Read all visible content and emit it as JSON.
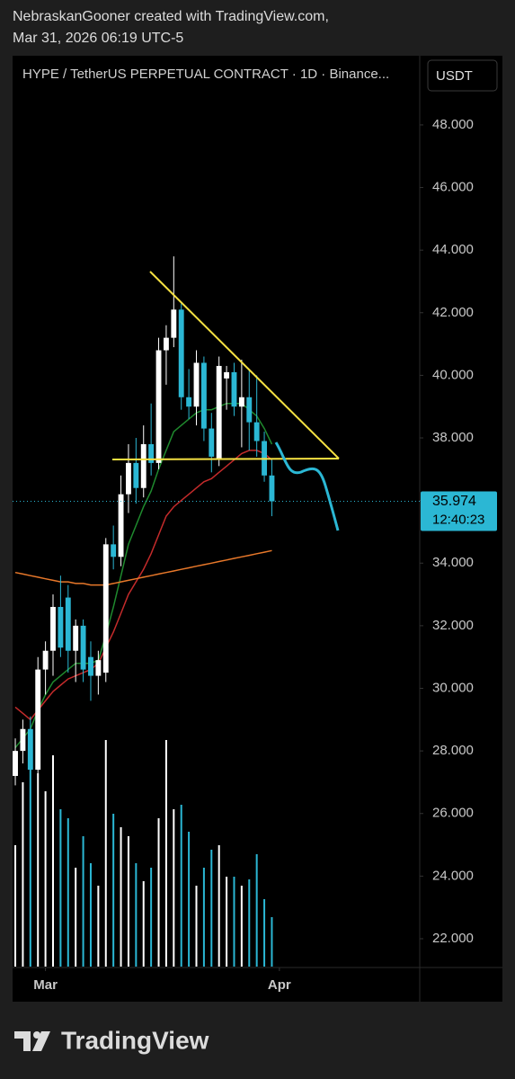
{
  "header": {
    "author": "NebraskanGooner created with TradingView.com,",
    "timestamp": "Mar 31, 2026 06:19 UTC-5"
  },
  "footer": {
    "brand": "TradingView"
  },
  "chart_data": {
    "type": "candlestick",
    "title": "HYPE / TetherUS PERPETUAL CONTRACT · 1D · Binance...",
    "currency": "USDT",
    "xlim": [
      -0.36,
      53.6
    ],
    "xticks": [
      {
        "value": 4,
        "label": "Mar"
      },
      {
        "value": 35,
        "label": "Apr"
      }
    ],
    "ylim": [
      21.08,
      50.21
    ],
    "yticks": [
      {
        "value": 22,
        "label": "22.000"
      },
      {
        "value": 24,
        "label": "24.000"
      },
      {
        "value": 26,
        "label": "26.000"
      },
      {
        "value": 28,
        "label": "28.000"
      },
      {
        "value": 30,
        "label": "30.000"
      },
      {
        "value": 32,
        "label": "32.000"
      },
      {
        "value": 34,
        "label": "34.000"
      },
      {
        "value": 36,
        "label": "36.000"
      },
      {
        "value": 38,
        "label": "38.000"
      },
      {
        "value": 40,
        "label": "40.000"
      },
      {
        "value": 42,
        "label": "42.000"
      },
      {
        "value": 44,
        "label": "44.000"
      },
      {
        "value": 46,
        "label": "46.000"
      },
      {
        "value": 48,
        "label": "48.000"
      }
    ],
    "up_color": "#ffffff",
    "down_color": "#2bb7d4",
    "open": [
      27.2,
      28.0,
      28.7,
      27.4,
      30.6,
      31.2,
      32.6,
      32.9,
      31.2,
      32.0,
      31.0,
      30.4,
      30.5,
      34.6,
      34.2,
      36.2,
      37.2,
      36.4,
      37.8,
      37.2,
      40.8,
      41.2,
      42.1,
      39.3,
      39.0,
      40.4,
      38.3,
      37.3,
      39.9,
      40.1,
      39.0,
      39.3,
      38.5,
      37.9,
      36.8
    ],
    "high": [
      28.4,
      29.0,
      29.1,
      31.0,
      31.5,
      33.0,
      33.6,
      33.3,
      32.2,
      32.2,
      31.5,
      31.2,
      34.8,
      35.2,
      36.8,
      37.8,
      38.0,
      38.4,
      39.1,
      41.2,
      41.6,
      43.8,
      42.3,
      40.2,
      40.8,
      40.6,
      38.8,
      40.6,
      40.3,
      40.4,
      40.5,
      40.2,
      40.0,
      38.2,
      37.3
    ],
    "low": [
      26.9,
      27.6,
      26.8,
      27.2,
      29.8,
      30.4,
      31.0,
      30.5,
      30.2,
      30.2,
      29.6,
      29.8,
      30.2,
      33.8,
      33.9,
      35.6,
      35.9,
      36.1,
      36.8,
      37.0,
      39.7,
      40.9,
      38.9,
      38.6,
      38.4,
      37.9,
      36.9,
      37.1,
      38.9,
      38.7,
      37.7,
      37.6,
      37.4,
      36.6,
      35.5
    ],
    "close": [
      28.0,
      28.7,
      27.4,
      30.6,
      31.2,
      32.6,
      31.3,
      31.2,
      32.0,
      30.6,
      30.4,
      30.9,
      34.6,
      34.2,
      36.2,
      37.2,
      36.4,
      37.8,
      37.2,
      40.8,
      41.2,
      42.1,
      39.3,
      39.0,
      40.4,
      38.3,
      37.4,
      40.3,
      40.1,
      39.0,
      39.3,
      38.5,
      37.9,
      36.8,
      35.974
    ],
    "volume": [
      135,
      205,
      225,
      215,
      195,
      235,
      175,
      165,
      110,
      145,
      115,
      90,
      252,
      170,
      155,
      145,
      115,
      95,
      110,
      165,
      252,
      175,
      180,
      150,
      90,
      110,
      130,
      135,
      100,
      100,
      90,
      97,
      125,
      75,
      55
    ],
    "series": [
      {
        "color": "#1f8a2e",
        "values": [
          28.1,
          28.4,
          28.7,
          29.3,
          29.8,
          30.2,
          30.4,
          30.6,
          30.8,
          30.8,
          30.8,
          30.9,
          31.7,
          32.6,
          33.6,
          34.6,
          35.2,
          35.8,
          36.3,
          37.0,
          37.6,
          38.2,
          38.4,
          38.6,
          38.8,
          38.9,
          38.9,
          39.0,
          39.1,
          39.1,
          39.1,
          38.9,
          38.7,
          38.3,
          37.8
        ]
      },
      {
        "color": "#c42b2b",
        "values": [
          29.4,
          29.2,
          29.0,
          29.3,
          29.6,
          29.9,
          30.1,
          30.3,
          30.4,
          30.5,
          30.6,
          30.8,
          31.3,
          31.8,
          32.4,
          33.0,
          33.4,
          33.8,
          34.3,
          34.9,
          35.5,
          35.8,
          36.0,
          36.2,
          36.4,
          36.6,
          36.7,
          36.9,
          37.1,
          37.3,
          37.5,
          37.6,
          37.6,
          37.5,
          37.3
        ]
      },
      {
        "color": "#e8782a",
        "values": [
          33.7,
          33.65,
          33.6,
          33.55,
          33.5,
          33.45,
          33.4,
          33.4,
          33.35,
          33.35,
          33.3,
          33.3,
          33.3,
          33.35,
          33.4,
          33.45,
          33.5,
          33.55,
          33.6,
          33.65,
          33.7,
          33.75,
          33.8,
          33.85,
          33.9,
          33.95,
          34.0,
          34.05,
          34.1,
          34.15,
          34.2,
          34.25,
          34.3,
          34.35,
          34.4
        ]
      }
    ],
    "last_price": {
      "value": 35.974,
      "label": "35.974",
      "countdown": "12:40:23",
      "color": "#2bb7d4"
    }
  }
}
